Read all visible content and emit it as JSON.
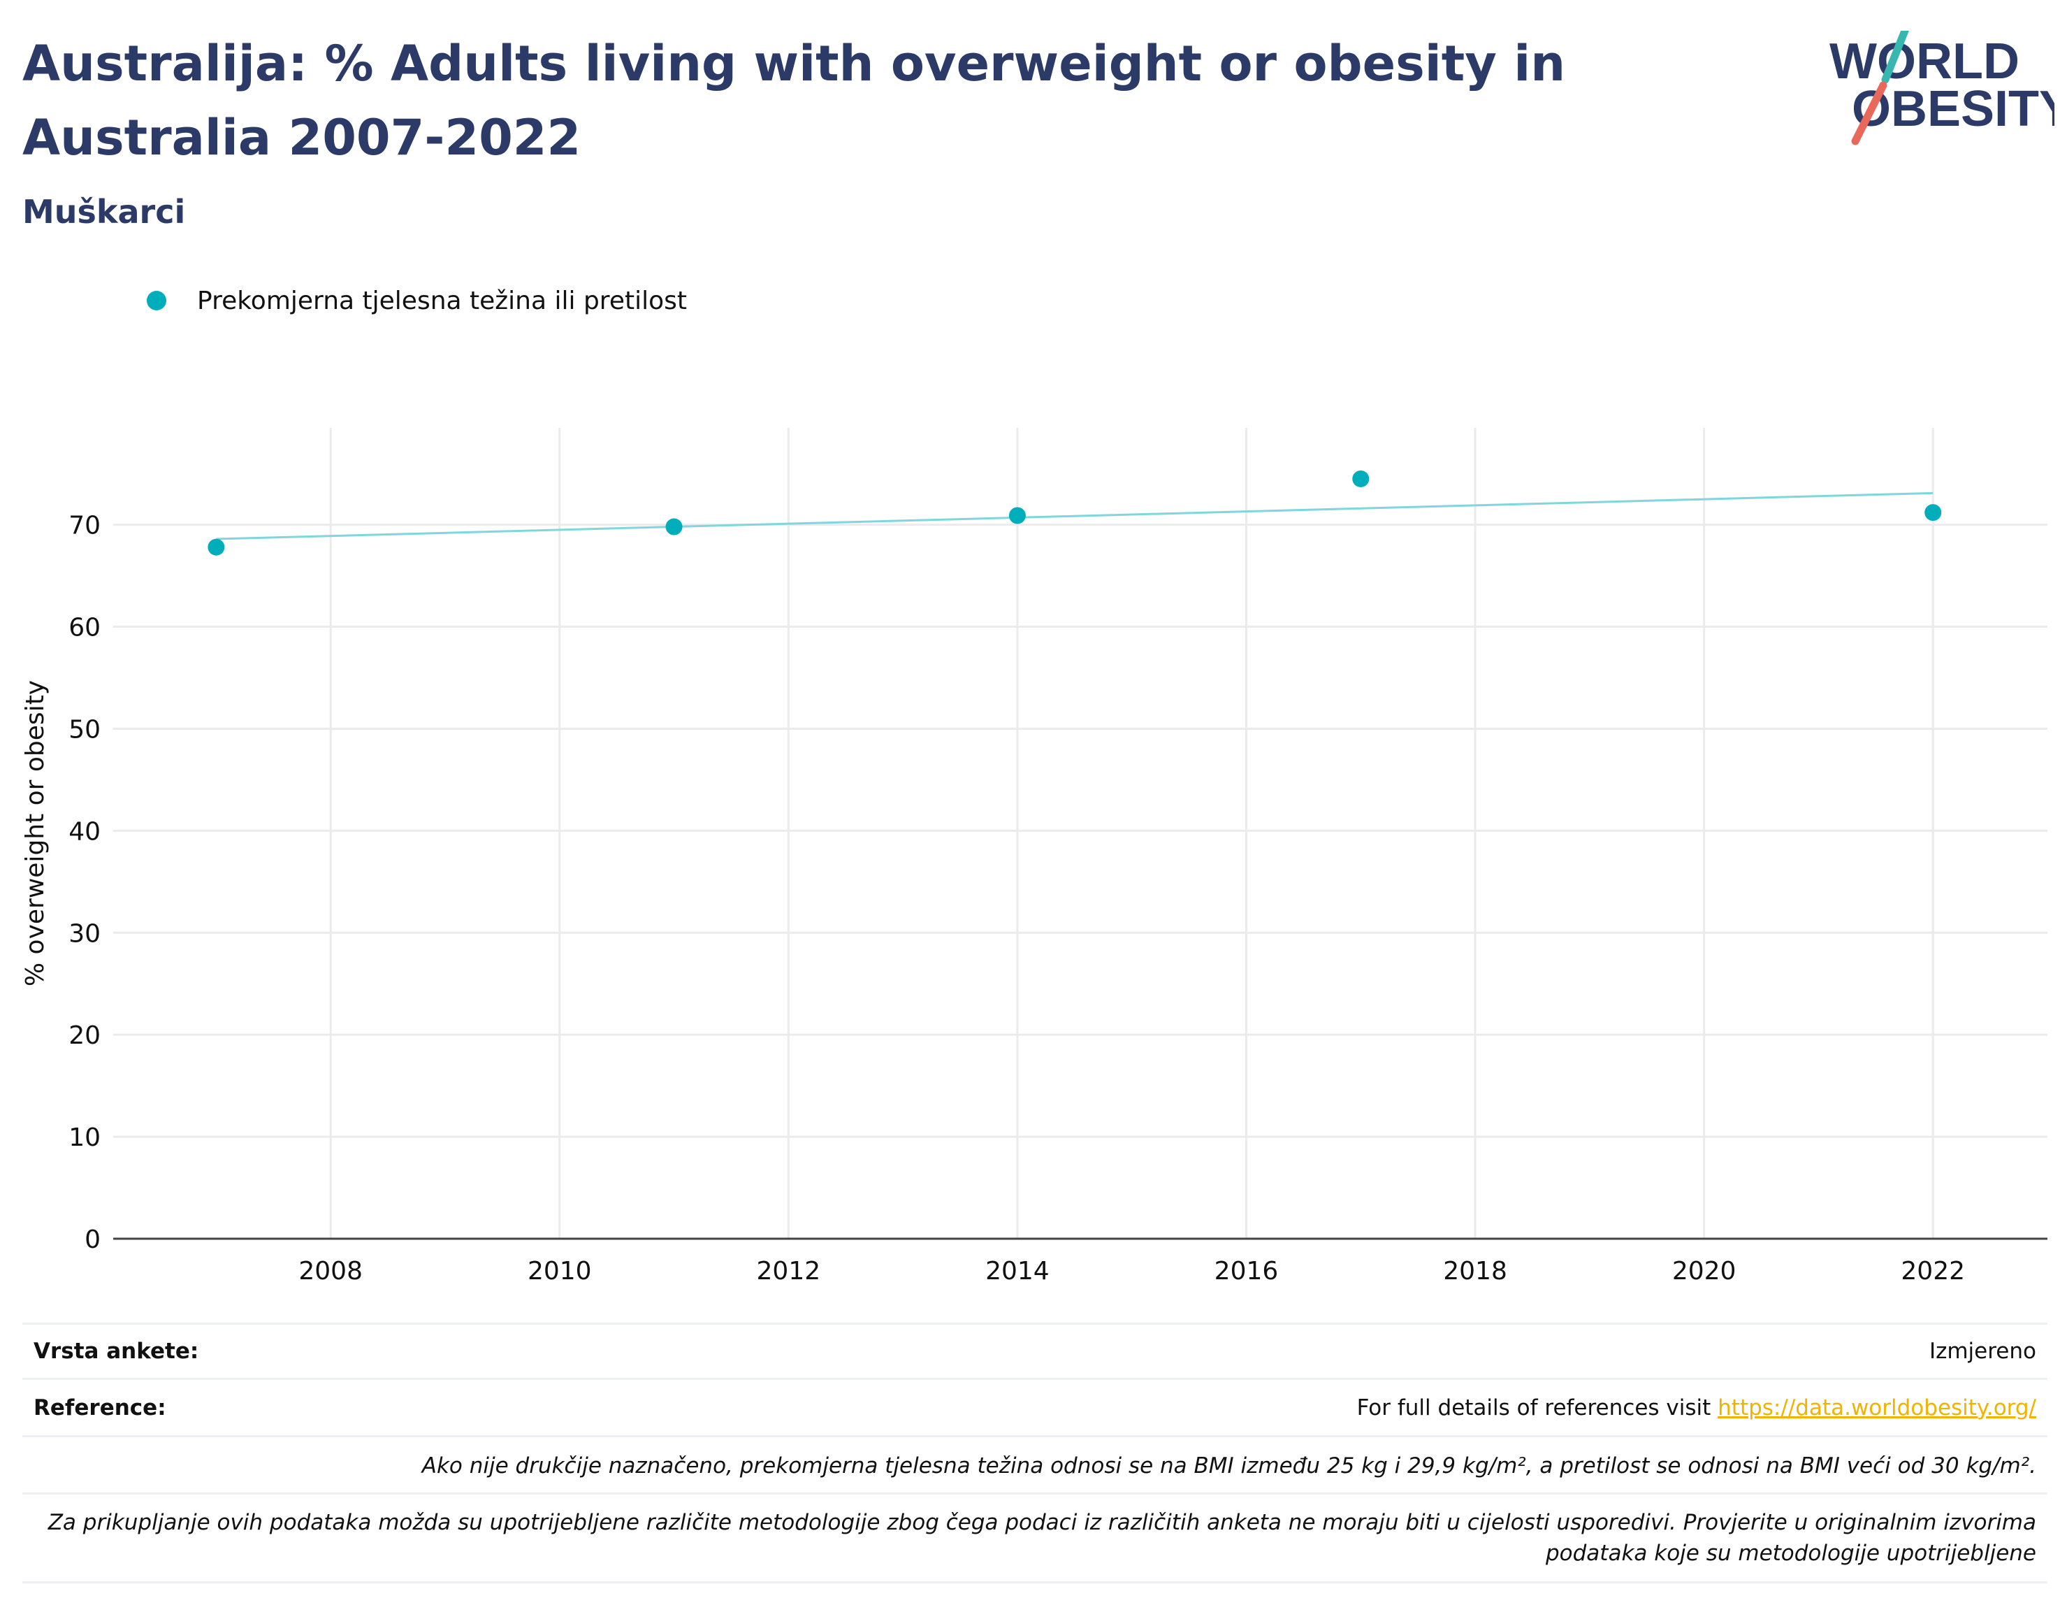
{
  "header": {
    "title": "Australija: % Adults living with overweight or obesity in Australia 2007-2022",
    "subtitle": "Muškarci"
  },
  "logo": {
    "line1": "WORLD",
    "line2": "OBESITY"
  },
  "colors": {
    "series": "#00aebb",
    "trend": "#7fd6dc",
    "title": "#2b3a67",
    "link": "#f0b400",
    "grid": "#ebebeb"
  },
  "chart_data": {
    "type": "scatter",
    "ylabel": "% overweight or obesity",
    "xlabel": "",
    "xlim": [
      2006.1,
      2023.0
    ],
    "ylim": [
      0,
      79.5
    ],
    "x_ticks": [
      2008,
      2010,
      2012,
      2014,
      2016,
      2018,
      2020,
      2022
    ],
    "y_ticks": [
      0,
      10,
      20,
      30,
      40,
      50,
      60,
      70
    ],
    "grid": true,
    "legend_position": "top-left",
    "series": [
      {
        "name": "Prekomjerna tjelesna težina ili pretilost",
        "x": [
          2007,
          2011,
          2014,
          2017,
          2022
        ],
        "y": [
          67.8,
          69.8,
          70.9,
          74.5,
          71.2
        ]
      }
    ],
    "trendline": {
      "x": [
        2007,
        2022
      ],
      "y": [
        68.6,
        73.1
      ]
    }
  },
  "footer": {
    "survey_type_label": "Vrsta ankete:",
    "survey_type_value": "Izmjereno",
    "references_label": "Reference:",
    "references_text": "For full details of references visit ",
    "references_link": "https://data.worldobesity.org/",
    "note1": "Ako nije drukčije naznačeno, prekomjerna tjelesna težina odnosi se na BMI između 25 kg i 29,9 kg/m², a pretilost se odnosi na BMI veći od 30 kg/m².",
    "note2_line1": "Za prikupljanje ovih podataka možda su upotrijebljene različite metodologije zbog čega podaci iz različitih anketa ne moraju biti u cijelosti usporedivi. Provjerite u originalnim izvorima",
    "note2_line2": "podataka koje su metodologije upotrijebljene"
  }
}
